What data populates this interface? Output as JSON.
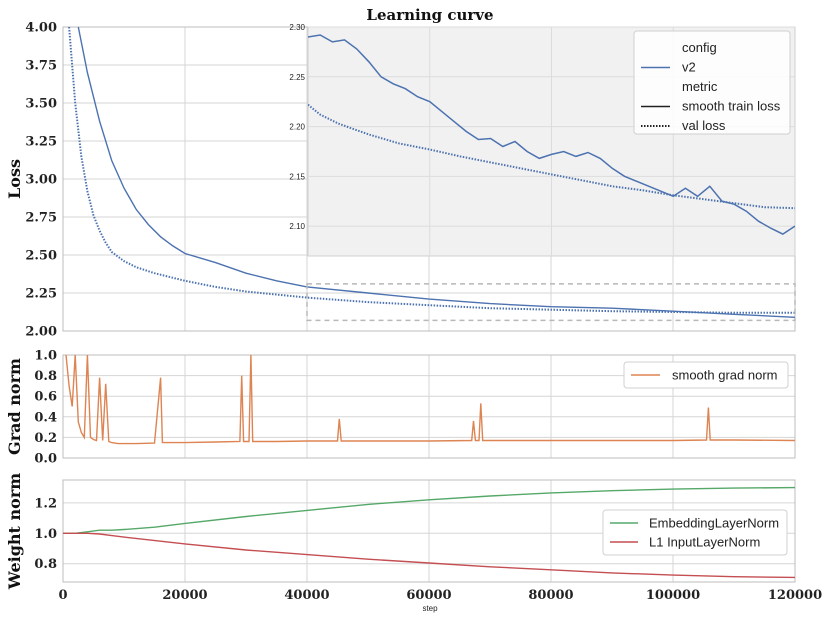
{
  "chart_data": [
    {
      "type": "line",
      "title": "Learning curve",
      "ylabel": "Loss",
      "xlim": [
        0,
        120000
      ],
      "ylim": [
        2.0,
        4.0
      ],
      "yticks": [
        "2.00",
        "2.25",
        "2.50",
        "2.75",
        "3.00",
        "3.25",
        "3.50",
        "3.75",
        "4.00"
      ],
      "series": [
        {
          "name": "smooth train loss",
          "style": "solid",
          "color": "#4c72b0",
          "x": [
            2500,
            4000,
            6000,
            8000,
            10000,
            12000,
            14000,
            16000,
            18000,
            20000,
            25000,
            30000,
            35000,
            40000,
            50000,
            60000,
            70000,
            80000,
            90000,
            100000,
            110000,
            120000
          ],
          "y": [
            4.0,
            3.7,
            3.38,
            3.12,
            2.94,
            2.8,
            2.7,
            2.62,
            2.56,
            2.51,
            2.45,
            2.38,
            2.33,
            2.29,
            2.25,
            2.21,
            2.18,
            2.16,
            2.15,
            2.13,
            2.11,
            2.09
          ]
        },
        {
          "name": "val loss",
          "style": "dotted",
          "color": "#4c72b0",
          "x": [
            1000,
            2000,
            3000,
            4000,
            5000,
            6000,
            7000,
            8000,
            10000,
            12000,
            15000,
            20000,
            25000,
            30000,
            40000,
            50000,
            60000,
            70000,
            80000,
            90000,
            100000,
            110000,
            120000
          ],
          "y": [
            4.0,
            3.5,
            3.15,
            2.92,
            2.76,
            2.66,
            2.58,
            2.52,
            2.46,
            2.42,
            2.38,
            2.33,
            2.29,
            2.26,
            2.22,
            2.19,
            2.17,
            2.15,
            2.14,
            2.13,
            2.125,
            2.12,
            2.12
          ]
        }
      ],
      "legend": {
        "placement": "top-right",
        "entries": [
          {
            "label": "config",
            "kind": "header"
          },
          {
            "label": "v2",
            "kind": "line",
            "style": "solid",
            "color": "#4c72b0"
          },
          {
            "label": "metric",
            "kind": "header"
          },
          {
            "label": "smooth train loss",
            "kind": "line",
            "style": "solid",
            "color": "#222222"
          },
          {
            "label": "val loss",
            "kind": "line",
            "style": "dotted",
            "color": "#222222"
          }
        ]
      },
      "inset": {
        "xlim": [
          40000,
          120000
        ],
        "ylim": [
          2.07,
          2.3
        ],
        "yticks": [
          "2.10",
          "2.15",
          "2.20",
          "2.25",
          "2.30"
        ],
        "series": [
          {
            "name": "smooth train loss",
            "style": "solid",
            "color": "#4c72b0",
            "x": [
              40000,
              42000,
              44000,
              46000,
              48000,
              50000,
              52000,
              54000,
              56000,
              58000,
              60000,
              62000,
              64000,
              66000,
              68000,
              70000,
              72000,
              74000,
              76000,
              78000,
              80000,
              82000,
              84000,
              86000,
              88000,
              90000,
              92000,
              94000,
              96000,
              98000,
              100000,
              102000,
              104000,
              106000,
              108000,
              110000,
              112000,
              114000,
              116000,
              118000,
              120000
            ],
            "y": [
              2.29,
              2.292,
              2.285,
              2.287,
              2.278,
              2.265,
              2.25,
              2.243,
              2.238,
              2.23,
              2.225,
              2.215,
              2.205,
              2.195,
              2.187,
              2.188,
              2.18,
              2.185,
              2.175,
              2.168,
              2.172,
              2.175,
              2.17,
              2.174,
              2.168,
              2.158,
              2.15,
              2.145,
              2.14,
              2.135,
              2.13,
              2.138,
              2.13,
              2.14,
              2.125,
              2.122,
              2.115,
              2.105,
              2.098,
              2.092,
              2.1
            ]
          },
          {
            "name": "val loss",
            "style": "dotted",
            "color": "#4c72b0",
            "x": [
              40000,
              42000,
              45000,
              50000,
              55000,
              60000,
              65000,
              70000,
              75000,
              80000,
              85000,
              90000,
              95000,
              100000,
              105000,
              110000,
              115000,
              120000
            ],
            "y": [
              2.222,
              2.212,
              2.203,
              2.192,
              2.183,
              2.177,
              2.17,
              2.164,
              2.158,
              2.152,
              2.146,
              2.14,
              2.136,
              2.131,
              2.127,
              2.123,
              2.119,
              2.118
            ]
          }
        ]
      }
    },
    {
      "type": "line",
      "ylabel": "Grad norm",
      "xlim": [
        0,
        120000
      ],
      "ylim": [
        0.0,
        1.0
      ],
      "yticks": [
        "0.0",
        "0.2",
        "0.4",
        "0.6",
        "0.8",
        "1.0"
      ],
      "legend": {
        "placement": "top-right",
        "entries": [
          {
            "label": "smooth grad norm",
            "color": "#dd8452"
          }
        ]
      },
      "series": [
        {
          "name": "smooth grad norm",
          "color": "#dd8452",
          "x": [
            500,
            1000,
            1500,
            2000,
            2500,
            3000,
            3500,
            4000,
            4500,
            5000,
            5500,
            6000,
            6500,
            7000,
            7500,
            8000,
            9000,
            10000,
            12000,
            15000,
            16000,
            16300,
            16600,
            20000,
            25000,
            29000,
            29300,
            29600,
            30500,
            30800,
            31100,
            35000,
            40000,
            45000,
            45300,
            45600,
            55000,
            60000,
            67000,
            67300,
            67600,
            68200,
            68500,
            68800,
            80000,
            90000,
            100000,
            105500,
            105800,
            106100,
            110000,
            120000
          ],
          "y": [
            1.0,
            0.7,
            0.5,
            1.0,
            0.35,
            0.25,
            0.2,
            1.0,
            0.2,
            0.18,
            0.17,
            0.78,
            0.17,
            0.72,
            0.16,
            0.15,
            0.14,
            0.14,
            0.14,
            0.145,
            0.78,
            0.15,
            0.15,
            0.15,
            0.155,
            0.16,
            0.8,
            0.16,
            0.16,
            1.0,
            0.16,
            0.16,
            0.165,
            0.165,
            0.38,
            0.165,
            0.165,
            0.165,
            0.17,
            0.36,
            0.17,
            0.17,
            0.53,
            0.17,
            0.17,
            0.17,
            0.17,
            0.175,
            0.49,
            0.175,
            0.175,
            0.17
          ]
        }
      ]
    },
    {
      "type": "line",
      "ylabel": "Weight norm",
      "xlabel": "step",
      "xlim": [
        0,
        120000
      ],
      "ylim": [
        0.68,
        1.35
      ],
      "yticks": [
        "0.8",
        "1.0",
        "1.2"
      ],
      "xticks": [
        "0",
        "20000",
        "40000",
        "60000",
        "80000",
        "100000",
        "120000"
      ],
      "legend": {
        "placement": "center-right",
        "entries": [
          {
            "label": "EmbeddingLayerNorm",
            "color": "#55a868"
          },
          {
            "label": "L1 InputLayerNorm",
            "color": "#c44e52"
          }
        ]
      },
      "series": [
        {
          "name": "EmbeddingLayerNorm",
          "color": "#55a868",
          "x": [
            0,
            2000,
            4000,
            6000,
            8000,
            10000,
            15000,
            20000,
            30000,
            40000,
            50000,
            60000,
            70000,
            80000,
            90000,
            100000,
            110000,
            120000
          ],
          "y": [
            1.0,
            1.0,
            1.01,
            1.02,
            1.02,
            1.025,
            1.04,
            1.065,
            1.11,
            1.15,
            1.19,
            1.22,
            1.245,
            1.265,
            1.28,
            1.29,
            1.297,
            1.3
          ]
        },
        {
          "name": "L1 InputLayerNorm",
          "color": "#c44e52",
          "x": [
            0,
            2000,
            4000,
            6000,
            8000,
            10000,
            20000,
            30000,
            40000,
            50000,
            60000,
            70000,
            80000,
            90000,
            100000,
            110000,
            120000
          ],
          "y": [
            1.0,
            1.0,
            1.0,
            0.995,
            0.985,
            0.975,
            0.93,
            0.89,
            0.86,
            0.83,
            0.805,
            0.78,
            0.76,
            0.74,
            0.725,
            0.715,
            0.71
          ]
        }
      ]
    }
  ]
}
